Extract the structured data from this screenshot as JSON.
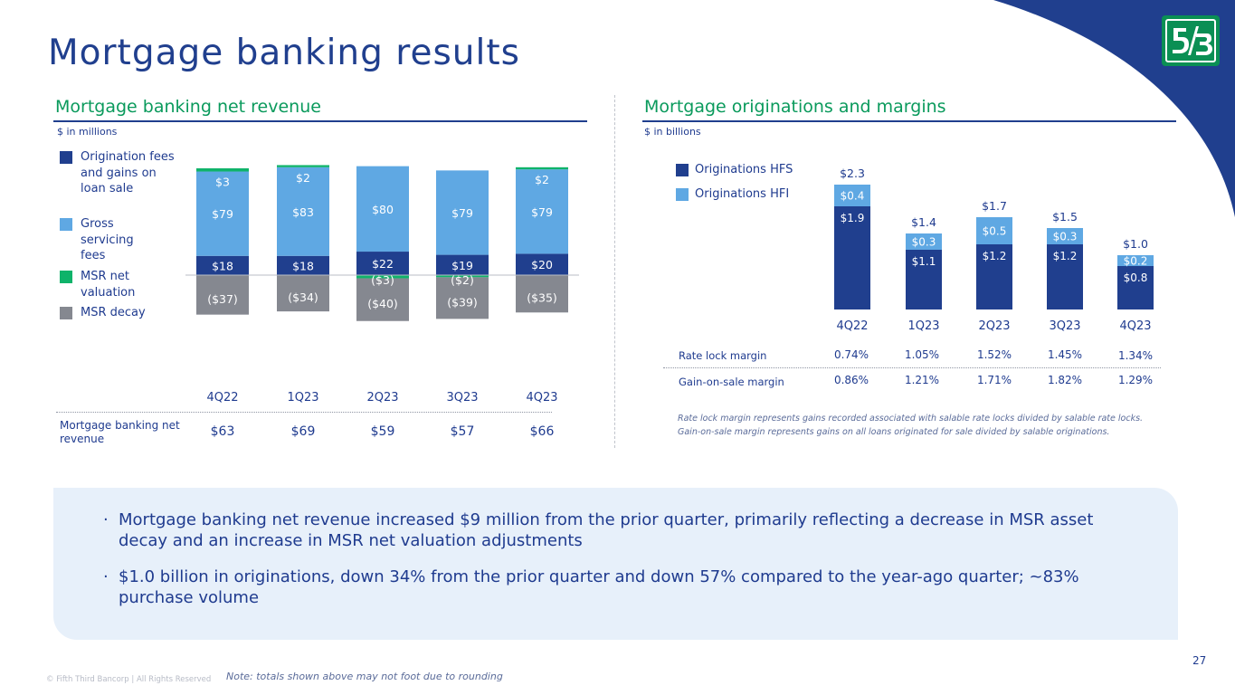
{
  "page": {
    "title": "Mortgage banking results",
    "page_number": "27",
    "copyright": "© Fifth Third Bancorp | All Rights Reserved",
    "note": "Note: totals shown above may not foot due to rounding",
    "logo_text": "5/3",
    "colors": {
      "navy": "#203f8e",
      "light_blue": "#5fa8e3",
      "green": "#0fb36a",
      "gray": "#858890",
      "title_green": "#0a9a5c",
      "callout_bg": "#e7f0fa"
    }
  },
  "left": {
    "title": "Mortgage banking net revenue",
    "unit": "$ in millions",
    "legend": [
      "Origination fees and gains on loan sale",
      "Gross servicing fees",
      "MSR net valuation",
      "MSR decay"
    ],
    "row_label": "Mortgage banking net revenue",
    "totals": [
      "$63",
      "$69",
      "$59",
      "$57",
      "$66"
    ]
  },
  "right": {
    "title": "Mortgage originations and margins",
    "unit": "$ in billions",
    "legend": [
      "Originations HFS",
      "Originations HFI"
    ],
    "metrics": [
      {
        "label": "Rate lock margin",
        "values": [
          "0.74%",
          "1.05%",
          "1.52%",
          "1.45%",
          "1.34%"
        ]
      },
      {
        "label": "Gain-on-sale margin",
        "values": [
          "0.86%",
          "1.21%",
          "1.71%",
          "1.82%",
          "1.29%"
        ]
      }
    ],
    "footnotes": [
      "Rate lock margin represents gains recorded associated with salable rate locks divided by salable rate locks.",
      "Gain-on-sale margin represents gains on all loans originated for sale divided by salable originations."
    ]
  },
  "bullets": [
    "Mortgage banking net revenue increased $9 million from the prior quarter, primarily reflecting a decrease in MSR asset decay and an increase in MSR net valuation adjustments",
    "$1.0 billion in originations, down 34% from the prior quarter and down 57% compared to the year-ago quarter; ~83% purchase volume"
  ],
  "chart_data": [
    {
      "type": "bar",
      "stacked": true,
      "unit": "$ in millions",
      "categories": [
        "4Q22",
        "1Q23",
        "2Q23",
        "3Q23",
        "4Q23"
      ],
      "series": [
        {
          "name": "Origination fees and gains on loan sale",
          "values": [
            18,
            18,
            22,
            19,
            20
          ],
          "labels": [
            "$18",
            "$18",
            "$22",
            "$19",
            "$20"
          ],
          "color": "#203f8e"
        },
        {
          "name": "Gross servicing fees",
          "values": [
            79,
            83,
            80,
            79,
            79
          ],
          "labels": [
            "$79",
            "$83",
            "$80",
            "$79",
            "$79"
          ],
          "color": "#5fa8e3"
        },
        {
          "name": "MSR net valuation",
          "values": [
            3,
            2,
            -3,
            -2,
            2
          ],
          "labels": [
            "$3",
            "$2",
            "($3)",
            "($2)",
            "$2"
          ],
          "color": "#0fb36a"
        },
        {
          "name": "MSR decay",
          "values": [
            -37,
            -34,
            -40,
            -39,
            -35
          ],
          "labels": [
            "($37)",
            "($34)",
            "($40)",
            "($39)",
            "($35)"
          ],
          "color": "#858890"
        }
      ],
      "ylim": [
        -50,
        110
      ],
      "legend": "left"
    },
    {
      "type": "bar",
      "stacked": true,
      "unit": "$ in billions",
      "categories": [
        "4Q22",
        "1Q23",
        "2Q23",
        "3Q23",
        "4Q23"
      ],
      "series": [
        {
          "name": "Originations HFS",
          "values": [
            1.9,
            1.1,
            1.2,
            1.2,
            0.8
          ],
          "labels": [
            "$1.9",
            "$1.1",
            "$1.2",
            "$1.2",
            "$0.8"
          ],
          "color": "#203f8e"
        },
        {
          "name": "Originations HFI",
          "values": [
            0.4,
            0.3,
            0.5,
            0.3,
            0.2
          ],
          "labels": [
            "$0.4",
            "$0.3",
            "$0.5",
            "$0.3",
            "$0.2"
          ],
          "color": "#5fa8e3"
        }
      ],
      "totals": [
        "$2.3",
        "$1.4",
        "$1.7",
        "$1.5",
        "$1.0"
      ],
      "ylim": [
        0,
        2.6
      ],
      "legend": "top-left"
    }
  ]
}
